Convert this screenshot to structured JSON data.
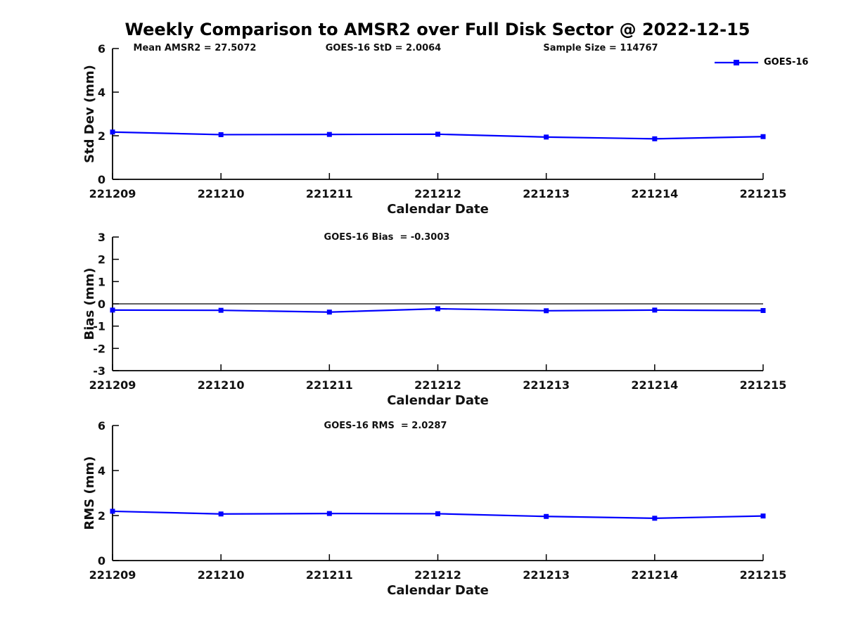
{
  "title": "Weekly Comparison to AMSR2 over Full Disk Sector @ 2022-12-15",
  "header_annotations": {
    "mean_amsr2": "Mean AMSR2 = 27.5072",
    "goes16_std": "GOES-16 StD = 2.0064",
    "sample_size": "Sample Size = 114767"
  },
  "legend": {
    "label": "GOES-16",
    "line_color": "#0000FF",
    "marker": "square",
    "position": "top-right-outside"
  },
  "chart_data": [
    {
      "type": "line",
      "name": "std-dev",
      "annotation": "",
      "categories": [
        "221209",
        "221210",
        "221211",
        "221212",
        "221213",
        "221214",
        "221215"
      ],
      "series": [
        {
          "name": "GOES-16",
          "color": "#0000FF",
          "marker": "square",
          "values": [
            2.17,
            2.05,
            2.06,
            2.07,
            1.94,
            1.86,
            1.96
          ]
        }
      ],
      "xlabel": "Calendar Date",
      "ylabel": "Std Dev (mm)",
      "ylim": [
        0,
        6
      ],
      "yticks": [
        0,
        2,
        4,
        6
      ],
      "grid": false,
      "zero_line": false
    },
    {
      "type": "line",
      "name": "bias",
      "annotation": "GOES-16 Bias  = -0.3003",
      "categories": [
        "221209",
        "221210",
        "221211",
        "221212",
        "221213",
        "221214",
        "221215"
      ],
      "series": [
        {
          "name": "GOES-16",
          "color": "#0000FF",
          "marker": "square",
          "values": [
            -0.28,
            -0.29,
            -0.37,
            -0.22,
            -0.31,
            -0.28,
            -0.3
          ]
        }
      ],
      "xlabel": "Calendar Date",
      "ylabel": "Bias (mm)",
      "ylim": [
        -3,
        3
      ],
      "yticks": [
        -3,
        -2,
        -1,
        0,
        1,
        2,
        3
      ],
      "grid": false,
      "zero_line": true
    },
    {
      "type": "line",
      "name": "rms",
      "annotation": "GOES-16 RMS  = 2.0287",
      "categories": [
        "221209",
        "221210",
        "221211",
        "221212",
        "221213",
        "221214",
        "221215"
      ],
      "series": [
        {
          "name": "GOES-16",
          "color": "#0000FF",
          "marker": "square",
          "values": [
            2.19,
            2.07,
            2.09,
            2.08,
            1.96,
            1.88,
            1.98
          ]
        }
      ],
      "xlabel": "Calendar Date",
      "ylabel": "RMS (mm)",
      "ylim": [
        0,
        6
      ],
      "yticks": [
        0,
        2,
        4,
        6
      ],
      "grid": false,
      "zero_line": false
    }
  ]
}
